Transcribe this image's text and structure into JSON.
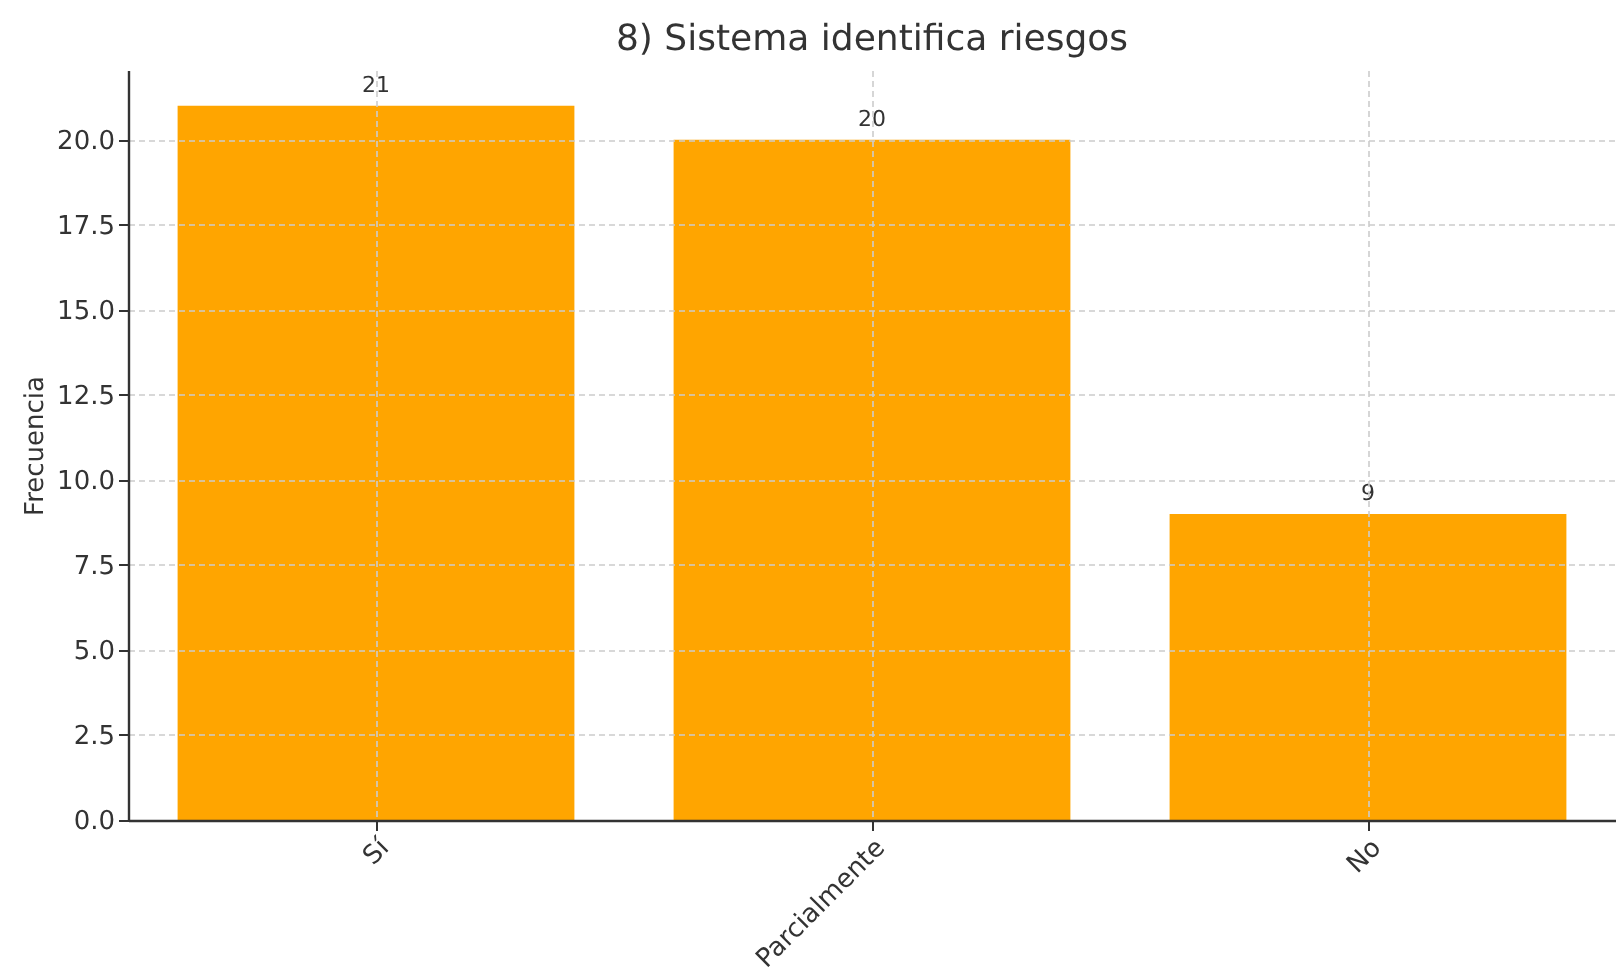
{
  "chart_data": {
    "type": "bar",
    "title": "8) Sistema identifica riesgos",
    "ylabel": "Frecuencia",
    "categories": [
      "Sí",
      "Parcialmente",
      "No"
    ],
    "values": [
      21,
      20,
      9
    ],
    "color": "#ffa500",
    "ylim": [
      0,
      22.05
    ],
    "yticks": [
      {
        "value": 0,
        "label": "0.0"
      },
      {
        "value": 2.5,
        "label": "2.5"
      },
      {
        "value": 5,
        "label": "5.0"
      },
      {
        "value": 7.5,
        "label": "7.5"
      },
      {
        "value": 10,
        "label": "10.0"
      },
      {
        "value": 12.5,
        "label": "12.5"
      },
      {
        "value": 15,
        "label": "15.0"
      },
      {
        "value": 17.5,
        "label": "17.5"
      },
      {
        "value": 20,
        "label": "20.0"
      }
    ],
    "grid": true,
    "data_labels": true
  }
}
